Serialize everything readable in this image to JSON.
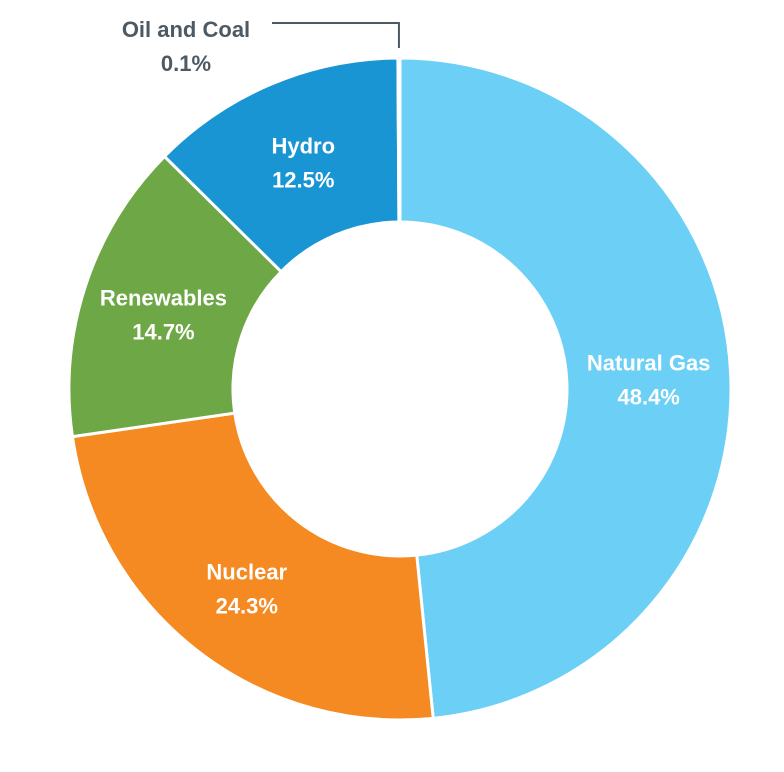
{
  "chart_data": {
    "type": "pie",
    "variant": "donut",
    "title": "",
    "slices": [
      {
        "label": "Natural Gas",
        "value": 48.4,
        "value_text": "48.4%",
        "color": "#6ccff6",
        "label_style": "inside"
      },
      {
        "label": "Nuclear",
        "value": 24.3,
        "value_text": "24.3%",
        "color": "#f48a21",
        "label_style": "inside"
      },
      {
        "label": "Renewables",
        "value": 14.7,
        "value_text": "14.7%",
        "color": "#6ea745",
        "label_style": "inside"
      },
      {
        "label": "Hydro",
        "value": 12.5,
        "value_text": "12.5%",
        "color": "#1a95d3",
        "label_style": "inside"
      },
      {
        "label": "Oil and Coal",
        "value": 0.1,
        "value_text": "0.1%",
        "color": "#4d5a63",
        "label_style": "callout"
      }
    ],
    "start_angle": "12 o'clock",
    "direction": "clockwise",
    "legend": "none"
  }
}
